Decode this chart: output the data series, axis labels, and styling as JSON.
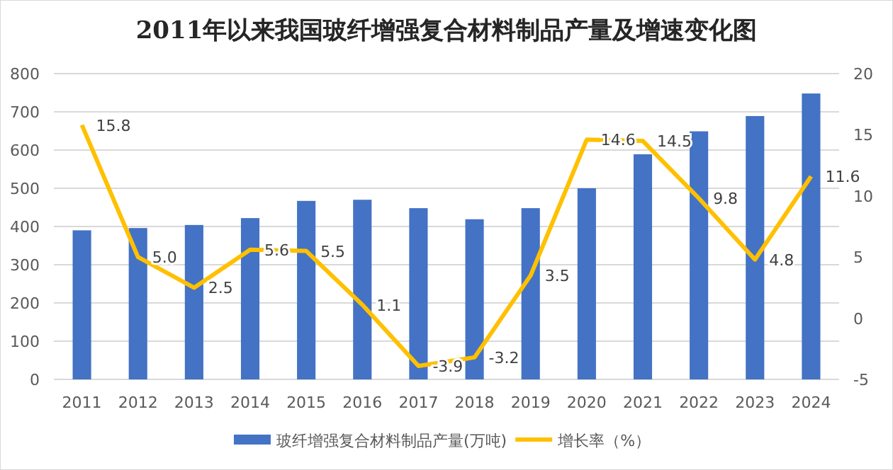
{
  "chart_data": {
    "type": "bar",
    "title": "2011年以来我国玻纤增强复合材料制品产量及增速变化图",
    "categories": [
      "2011",
      "2012",
      "2013",
      "2014",
      "2015",
      "2016",
      "2017",
      "2018",
      "2019",
      "2020",
      "2021",
      "2022",
      "2023",
      "2024"
    ],
    "series": [
      {
        "name": "玻纤增强复合材料制品产量(万吨)",
        "color": "#4472c4",
        "values": [
          390,
          396,
          404,
          422,
          467,
          470,
          448,
          419,
          448,
          500,
          589,
          649,
          689,
          748
        ]
      },
      {
        "name": "增长率（%）",
        "type": "line",
        "axis": "y2",
        "color": "#ffc000",
        "values": [
          15.8,
          5.0,
          2.5,
          5.6,
          5.5,
          1.1,
          -3.9,
          -3.2,
          3.5,
          14.6,
          14.5,
          9.8,
          4.8,
          11.6
        ],
        "value_labels": [
          "15.8",
          "5.0",
          "2.5",
          "5.6",
          "5.5",
          "1.1",
          "-3.9",
          "-3.2",
          "3.5",
          "14.6",
          "14.5",
          "9.8",
          "4.8",
          "11.6"
        ]
      }
    ],
    "ylim": [
      0,
      800
    ],
    "yticks": [
      0,
      100,
      200,
      300,
      400,
      500,
      600,
      700,
      800
    ],
    "y2lim": [
      -5,
      20
    ],
    "y2ticks": [
      -5,
      0,
      5,
      10,
      15,
      20
    ],
    "grid": "y",
    "legend": "bottom",
    "marker": "none"
  }
}
